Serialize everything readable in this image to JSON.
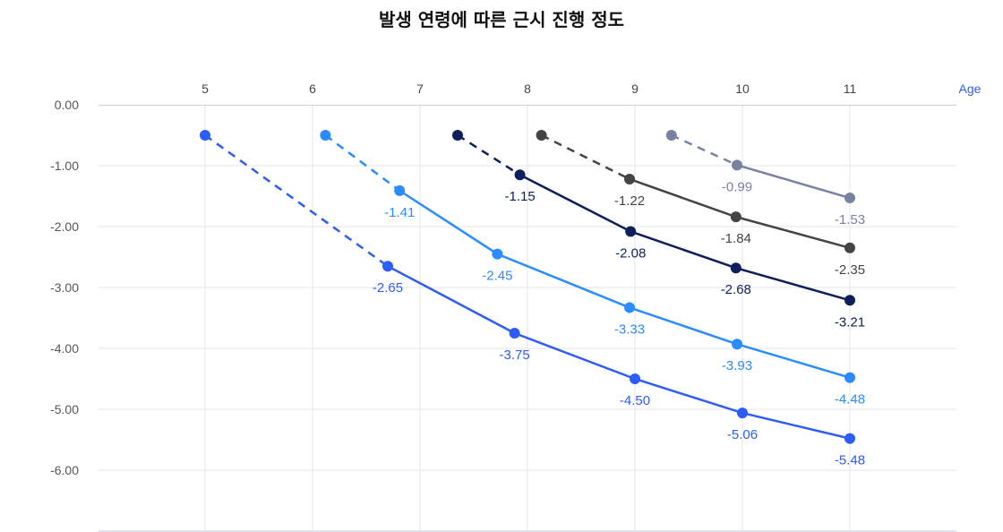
{
  "chart_data": {
    "type": "line",
    "title": "발생 연령에 따른 근시 진행 정도",
    "xlabel": "Age",
    "ylabel": "",
    "x_ticks": [
      5,
      6,
      7,
      8,
      9,
      10,
      11
    ],
    "y_ticks": [
      "0.00",
      "-1.00",
      "-2.00",
      "-3.00",
      "-4.00",
      "-5.00",
      "-6.00"
    ],
    "xlim": [
      4,
      12
    ],
    "ylim": [
      -7,
      0
    ],
    "x_axis_position": "top",
    "grid": true,
    "series": [
      {
        "color": "#2d5cf6",
        "onset": [
          5.0,
          -0.5
        ],
        "points": [
          [
            6.7,
            -2.65
          ],
          [
            7.88,
            -3.75
          ],
          [
            9.0,
            -4.5
          ],
          [
            10.0,
            -5.06
          ],
          [
            11.0,
            -5.48
          ]
        ],
        "labels": [
          "-2.65",
          "-3.75",
          "-4.50",
          "-5.06",
          "-5.48"
        ]
      },
      {
        "color": "#2a8cff",
        "onset": [
          6.12,
          -0.5
        ],
        "points": [
          [
            6.81,
            -1.41
          ],
          [
            7.72,
            -2.45
          ],
          [
            8.95,
            -3.33
          ],
          [
            9.95,
            -3.93
          ],
          [
            11.0,
            -4.48
          ]
        ],
        "labels": [
          "-1.41",
          "-2.45",
          "-3.33",
          "-3.93",
          "-4.48"
        ]
      },
      {
        "color": "#0f1f5c",
        "onset": [
          7.35,
          -0.5
        ],
        "points": [
          [
            7.93,
            -1.15
          ],
          [
            8.96,
            -2.08
          ],
          [
            9.94,
            -2.68
          ],
          [
            11.0,
            -3.21
          ]
        ],
        "labels": [
          "-1.15",
          "-2.08",
          "-2.68",
          "-3.21"
        ]
      },
      {
        "color": "#444444",
        "onset": [
          8.13,
          -0.5
        ],
        "points": [
          [
            8.95,
            -1.22
          ],
          [
            9.94,
            -1.84
          ],
          [
            11.0,
            -2.35
          ]
        ],
        "labels": [
          "-1.22",
          "-1.84",
          "-2.35"
        ]
      },
      {
        "color": "#7a82a2",
        "onset": [
          9.34,
          -0.5
        ],
        "points": [
          [
            9.95,
            -0.99
          ],
          [
            11.0,
            -1.53
          ]
        ],
        "labels": [
          "-0.99",
          "-1.53"
        ]
      }
    ],
    "xlabel_color": "#2d5cf6"
  }
}
